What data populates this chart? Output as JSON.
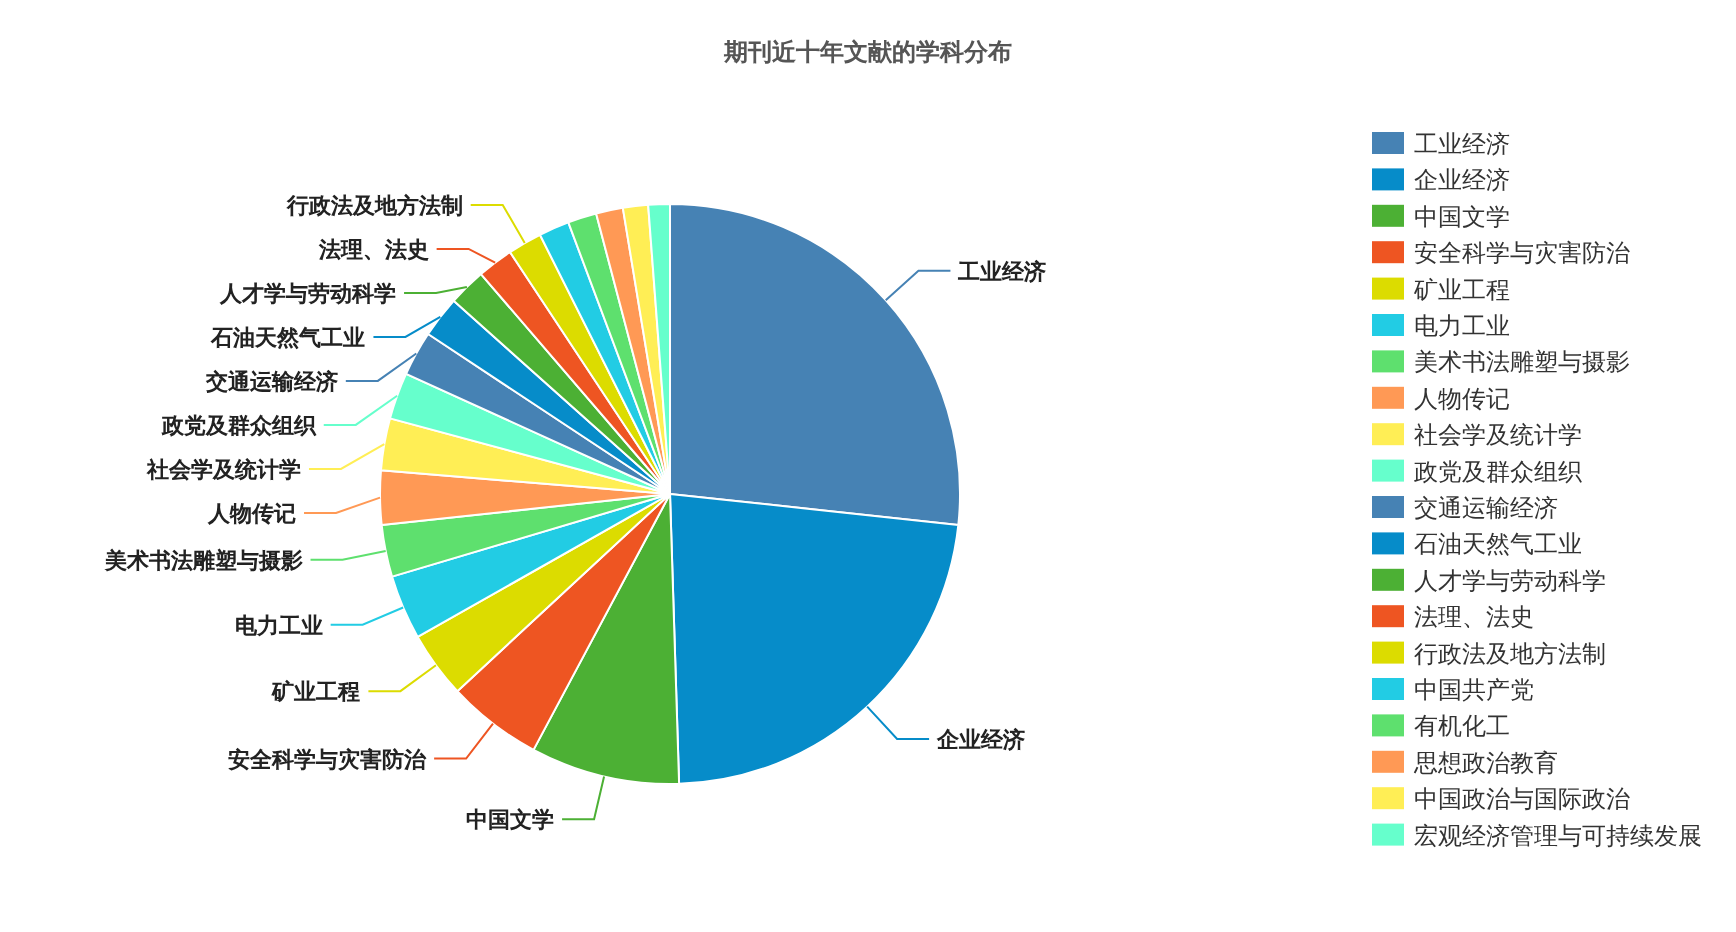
{
  "chart_data": {
    "type": "pie",
    "title": "期刊近十年文献的学科分布",
    "categories": [
      "工业经济",
      "企业经济",
      "中国文学",
      "安全科学与灾害防治",
      "矿业工程",
      "电力工业",
      "美术书法雕塑与摄影",
      "人物传记",
      "社会学及统计学",
      "政党及群众组织",
      "交通运输经济",
      "石油天然气工业",
      "人才学与劳动科学",
      "法理、法史",
      "行政法及地方法制",
      "中国共产党",
      "有机化工",
      "思想政治教育",
      "中国政治与国际政治",
      "宏观经济管理与可持续发展"
    ],
    "values": [
      26.7,
      22.8,
      8.3,
      5.3,
      3.7,
      3.6,
      2.9,
      3.0,
      2.9,
      2.6,
      2.5,
      2.3,
      2.1,
      2.0,
      1.9,
      1.7,
      1.6,
      1.5,
      1.4,
      1.2
    ],
    "colors": [
      "#4682b4",
      "#068cc9",
      "#4cb034",
      "#ee5522",
      "#dcdc00",
      "#22cce4",
      "#5ee06e",
      "#ff9955",
      "#ffee55",
      "#66ffcc",
      "#4682b4",
      "#068cc9",
      "#4cb034",
      "#ee5522",
      "#dcdc00",
      "#22cce4",
      "#5ee06e",
      "#ff9955",
      "#ffee55",
      "#66ffcc"
    ],
    "value_labels": [
      "工业经济",
      "企业经济",
      "中国文学",
      "安全科学与灾害防治",
      "矿业工程",
      "电力工业",
      "美术书法雕塑与摄影",
      "人物传记",
      "社会学及统计学",
      "政党及群众组织",
      "交通运输经济",
      "石油天然气工业",
      "人才学与劳动科学",
      "法理、法史",
      "行政法及地方法制",
      null,
      null,
      null,
      null,
      null
    ],
    "legend": "right"
  }
}
